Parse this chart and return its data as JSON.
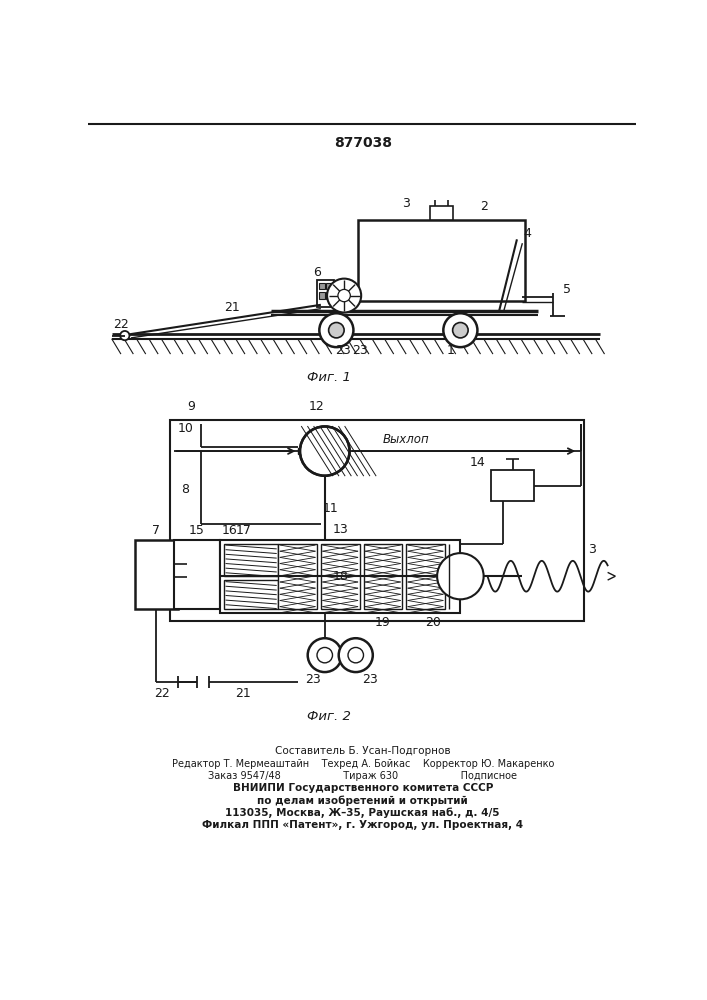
{
  "patent_number": "877038",
  "fig1_caption": "Фиг. 1",
  "fig2_caption": "Фиг. 2",
  "exhaust_label": "Выхлоп",
  "footer_lines": [
    "Составитель Б. Усан-Подгорнов",
    "Редактор Т. Мермеаштайн    Техред А. Бойкас    Корректор Ю. Макаренко",
    "Заказ 9547/48                    Тираж 630                    Подписное",
    "ВНИИПИ Государственного комитета СССР",
    "по делам изобретений и открытий",
    "113035, Москва, Ж–35, Раушская наб., д. 4/5",
    "Филкал ППП «Патент», г. Ужгород, ул. Проектная, 4"
  ],
  "bg_color": "#ffffff",
  "line_color": "#1a1a1a"
}
